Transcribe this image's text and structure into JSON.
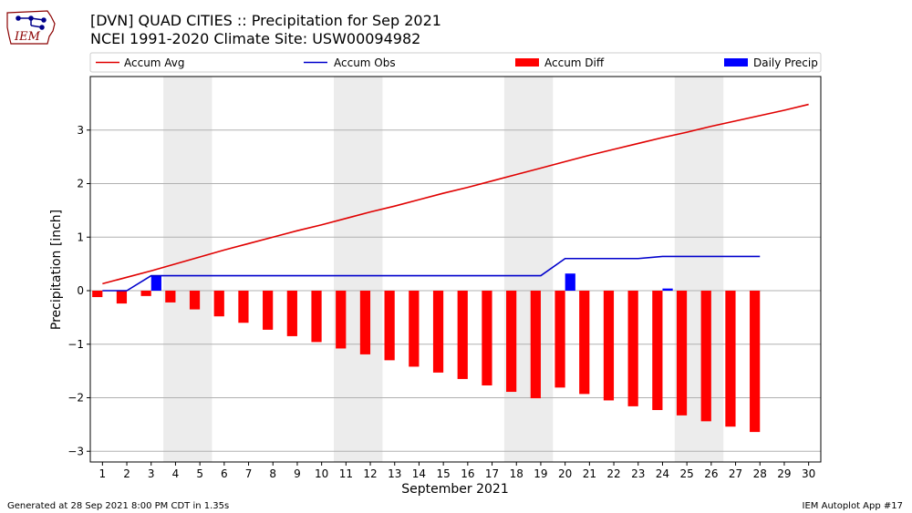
{
  "logo": {
    "text": "IEM"
  },
  "chart_data": {
    "type": "bar",
    "title": "[DVN] QUAD CITIES :: Precipitation for Sep 2021",
    "subtitle": "NCEI 1991-2020 Climate Site: USW00094982",
    "xlabel": "September 2021",
    "ylabel": "Precipitation [inch]",
    "ylim": [
      -3.2,
      4.0
    ],
    "yticks": [
      -3,
      -2,
      -1,
      0,
      1,
      2,
      3
    ],
    "grid": true,
    "legend_position": "top",
    "categories": [
      1,
      2,
      3,
      4,
      5,
      6,
      7,
      8,
      9,
      10,
      11,
      12,
      13,
      14,
      15,
      16,
      17,
      18,
      19,
      20,
      21,
      22,
      23,
      24,
      25,
      26,
      27,
      28,
      29,
      30
    ],
    "weekend_shading": [
      [
        3.5,
        5.5
      ],
      [
        10.5,
        12.5
      ],
      [
        17.5,
        19.5
      ],
      [
        24.5,
        26.5
      ]
    ],
    "series": [
      {
        "name": "Accum Avg",
        "type": "line",
        "color": "#e00000",
        "x": [
          1,
          2,
          3,
          4,
          5,
          6,
          7,
          8,
          9,
          10,
          11,
          12,
          13,
          14,
          15,
          16,
          17,
          18,
          19,
          20,
          21,
          22,
          23,
          24,
          25,
          26,
          27,
          28,
          29,
          30
        ],
        "values": [
          0.13,
          0.25,
          0.37,
          0.5,
          0.63,
          0.76,
          0.88,
          1.0,
          1.12,
          1.23,
          1.35,
          1.47,
          1.58,
          1.7,
          1.82,
          1.93,
          2.05,
          2.17,
          2.29,
          2.41,
          2.53,
          2.64,
          2.75,
          2.86,
          2.96,
          3.07,
          3.17,
          3.27,
          3.37,
          3.48
        ]
      },
      {
        "name": "Accum Obs",
        "type": "line",
        "color": "#0000cc",
        "x": [
          1,
          2,
          3,
          4,
          5,
          6,
          7,
          8,
          9,
          10,
          11,
          12,
          13,
          14,
          15,
          16,
          17,
          18,
          19,
          20,
          21,
          22,
          23,
          24,
          25,
          26,
          27,
          28
        ],
        "values": [
          0.0,
          0.0,
          0.28,
          0.28,
          0.28,
          0.28,
          0.28,
          0.28,
          0.28,
          0.28,
          0.28,
          0.28,
          0.28,
          0.28,
          0.28,
          0.28,
          0.28,
          0.28,
          0.28,
          0.6,
          0.6,
          0.6,
          0.6,
          0.64,
          0.64,
          0.64,
          0.64,
          0.64
        ]
      },
      {
        "name": "Accum Diff",
        "type": "bar",
        "color": "#ff0000",
        "x": [
          1,
          2,
          3,
          4,
          5,
          6,
          7,
          8,
          9,
          10,
          11,
          12,
          13,
          14,
          15,
          16,
          17,
          18,
          19,
          20,
          21,
          22,
          23,
          24,
          25,
          26,
          27,
          28
        ],
        "values": [
          -0.12,
          -0.24,
          -0.1,
          -0.22,
          -0.35,
          -0.48,
          -0.6,
          -0.73,
          -0.85,
          -0.96,
          -1.08,
          -1.19,
          -1.3,
          -1.42,
          -1.53,
          -1.65,
          -1.77,
          -1.89,
          -2.01,
          -1.81,
          -1.93,
          -2.05,
          -2.16,
          -2.23,
          -2.33,
          -2.44,
          -2.54,
          -2.64
        ]
      },
      {
        "name": "Daily Precip",
        "type": "bar",
        "color": "#0000ff",
        "x": [
          3,
          20,
          24
        ],
        "values": [
          0.28,
          0.32,
          0.04
        ]
      }
    ]
  },
  "footer": {
    "left": "Generated at 28 Sep 2021 8:00 PM CDT in 1.35s",
    "right": "IEM Autoplot App #17"
  }
}
